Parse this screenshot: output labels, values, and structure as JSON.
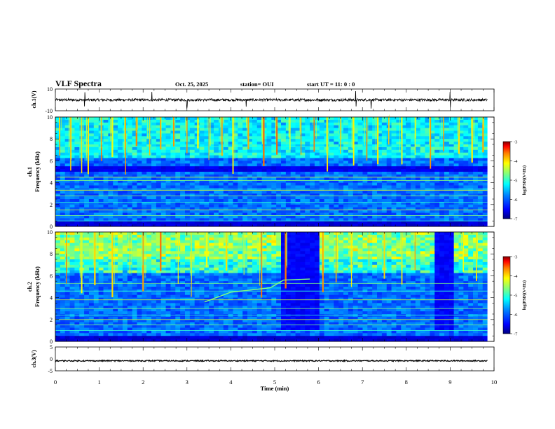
{
  "header": {
    "title": "VLF Spectra",
    "date": "Oct. 25, 2025",
    "station": "station= OUI",
    "start": "start  UT =  11: 0  : 0"
  },
  "colors": {
    "background": "#ffffff",
    "axis": "#000000",
    "spectrogram_base": "#1b3fb8",
    "spectrogram_dark": "#0a1a70",
    "colormap": [
      "#00007f",
      "#0000ff",
      "#007fff",
      "#00ffff",
      "#7fff7f",
      "#ffff00",
      "#ff7f00",
      "#ff0000",
      "#7f0000"
    ]
  },
  "chart_data": [
    {
      "id": "ch1-waveform",
      "type": "line",
      "ylabel": "ch.1(V)",
      "xlim": [
        0,
        10
      ],
      "ylim": [
        -10,
        10
      ],
      "yticks": [
        "10",
        "-10"
      ],
      "mean_value": 0,
      "noise_amplitude": 1.2,
      "spikes_min": [
        0.67,
        2.2,
        3.0,
        4.35,
        6.85,
        7.2,
        9.0
      ]
    },
    {
      "id": "ch1-spectrogram",
      "type": "heatmap",
      "ylabel_top": "ch.1",
      "ylabel": "Frequency  (kHz)",
      "xlim": [
        0,
        9.85
      ],
      "ylim": [
        0,
        10
      ],
      "yticks": [
        "0",
        "2",
        "4",
        "6",
        "8",
        "10"
      ],
      "colorbar": {
        "label": "log(PSD)(V²/Hz)",
        "ticks": [
          "-3",
          "-4",
          "-5",
          "-6",
          "-7"
        ],
        "range": [
          -7,
          -3
        ]
      },
      "dark_band_khz": [
        5.0,
        5.6
      ],
      "tonal_lines_khz": [
        0.5,
        1.0,
        1.5,
        2.2,
        2.8,
        3.3,
        3.4,
        4.2,
        4.5,
        7.3
      ],
      "sferic_times_min": [
        0.1,
        0.35,
        0.6,
        0.75,
        1.05,
        1.3,
        1.6,
        1.85,
        2.15,
        2.4,
        2.7,
        3.0,
        3.25,
        3.5,
        3.8,
        4.05,
        4.4,
        4.75,
        5.05,
        5.35,
        5.6,
        5.9,
        6.2,
        6.5,
        6.8,
        7.1,
        7.35,
        7.6,
        7.9,
        8.2,
        8.55,
        8.85,
        9.2,
        9.5,
        9.75
      ]
    },
    {
      "id": "ch2-spectrogram",
      "type": "heatmap",
      "ylabel_top": "ch.2",
      "ylabel": "Frequency  (kHz)",
      "xlim": [
        0,
        9.85
      ],
      "ylim": [
        0,
        10
      ],
      "yticks": [
        "0",
        "2",
        "4",
        "6",
        "8",
        "10"
      ],
      "colorbar": {
        "label": "log(PSD)(V²/Hz)",
        "ticks": [
          "-3",
          "-4",
          "-5",
          "-6",
          "-7"
        ],
        "range": [
          -7,
          -3
        ]
      },
      "quiet_intervals_min": [
        [
          5.15,
          6.0
        ],
        [
          8.6,
          9.05
        ]
      ],
      "emission_track": [
        [
          3.4,
          3.6
        ],
        [
          4.0,
          4.5
        ],
        [
          4.9,
          4.9
        ],
        [
          5.2,
          5.6
        ],
        [
          5.8,
          5.7
        ]
      ],
      "tonal_lines_khz": [
        1.0,
        1.5,
        2.0,
        2.4,
        3.0,
        3.8,
        4.6,
        5.3
      ],
      "sferic_times_min": [
        0.25,
        0.6,
        0.9,
        1.3,
        1.7,
        2.0,
        2.4,
        2.8,
        3.1,
        3.45,
        3.9,
        4.3,
        4.7,
        5.25,
        6.1,
        6.4,
        6.75,
        7.15,
        7.5,
        7.9,
        8.2,
        9.3,
        9.6
      ]
    },
    {
      "id": "ch3-waveform",
      "type": "line",
      "ylabel": "ch.3(V)",
      "xlim": [
        0,
        10
      ],
      "ylim": [
        -5,
        5
      ],
      "yticks": [
        "5",
        "0",
        "-5"
      ],
      "mean_value": -0.8,
      "noise_amplitude": 0.25
    }
  ],
  "x_axis": {
    "label": "Time  (min)",
    "ticks": [
      "0",
      "1",
      "2",
      "3",
      "4",
      "5",
      "6",
      "7",
      "8",
      "9",
      "10"
    ],
    "range": [
      0,
      10
    ]
  }
}
